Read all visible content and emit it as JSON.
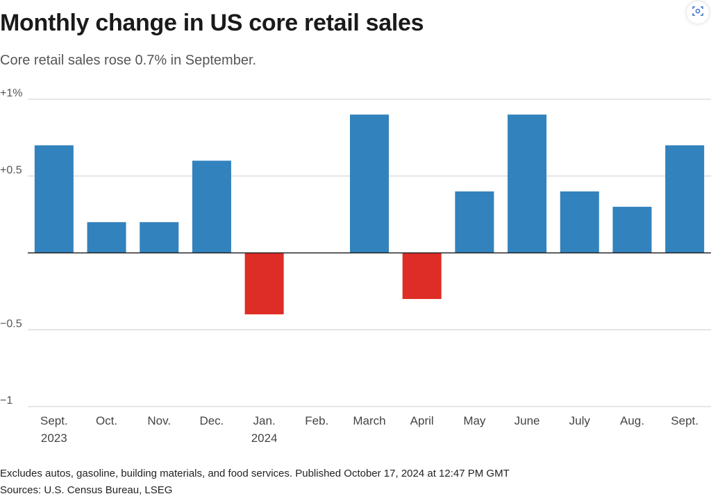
{
  "title": "Monthly change in US core retail sales",
  "subtitle": "Core retail sales rose 0.7% in September.",
  "footnote": "Excludes autos, gasoline, building materials, and food services. Published October 17, 2024 at 12:47 PM GMT",
  "sources": "Sources: U.S. Census Bureau, LSEG",
  "screenshot_button": {
    "icon": "camera-icon"
  },
  "colors": {
    "positive": "#3282bd",
    "negative": "#de2d26",
    "grid": "#cccccc",
    "baseline": "#222222"
  },
  "chart_data": {
    "type": "bar",
    "title": "Monthly change in US core retail sales",
    "subtitle": "Core retail sales rose 0.7% in September.",
    "xlabel": "",
    "ylabel": "",
    "ylim": [
      -1,
      1
    ],
    "y_ticks": [
      {
        "value": 1,
        "label": "+1%"
      },
      {
        "value": 0.5,
        "label": "+0.5"
      },
      {
        "value": -0.5,
        "label": "−0.5"
      },
      {
        "value": -1,
        "label": "−1"
      }
    ],
    "grid": true,
    "categories": [
      [
        "Sept.",
        "2023"
      ],
      [
        "Oct."
      ],
      [
        "Nov."
      ],
      [
        "Dec."
      ],
      [
        "Jan.",
        "2024"
      ],
      [
        "Feb."
      ],
      [
        "March"
      ],
      [
        "April"
      ],
      [
        "May"
      ],
      [
        "June"
      ],
      [
        "July"
      ],
      [
        "Aug."
      ],
      [
        "Sept."
      ]
    ],
    "values": [
      0.7,
      0.2,
      0.2,
      0.6,
      -0.4,
      0.0,
      0.9,
      -0.3,
      0.4,
      0.9,
      0.4,
      0.3,
      0.7
    ]
  }
}
